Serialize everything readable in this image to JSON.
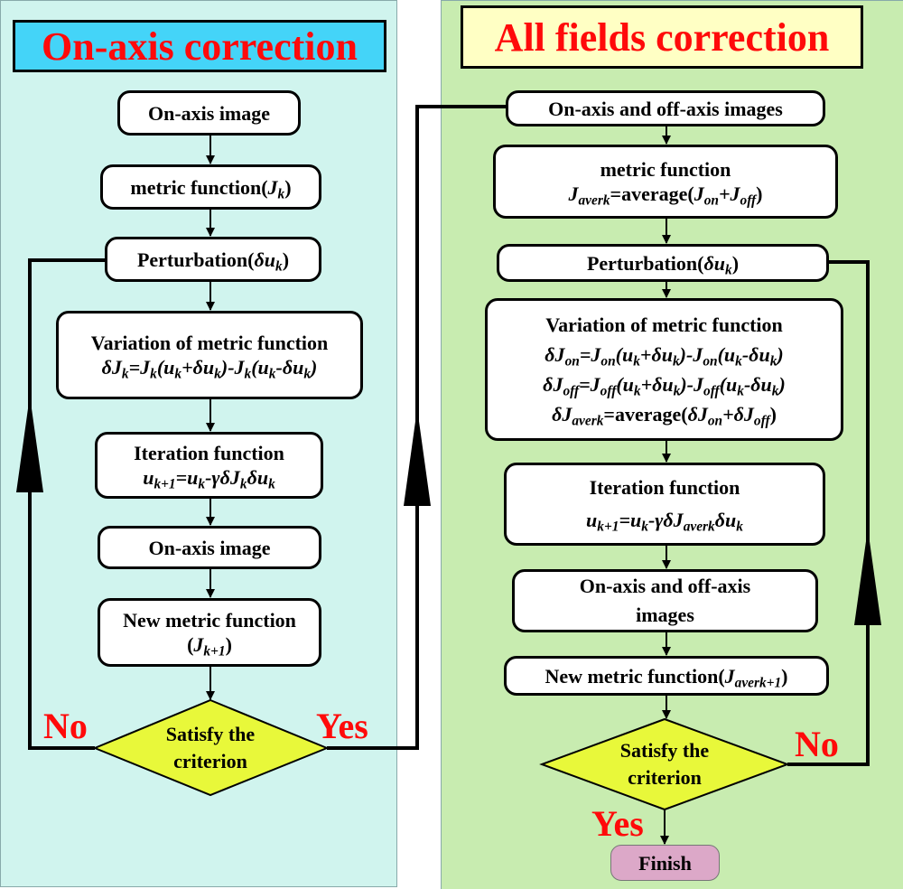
{
  "colors": {
    "left_panel": "#d0f4ee",
    "right_panel": "#c8ecb0",
    "left_title_bg": "#44d4f8",
    "right_title_bg": "#ffffc4",
    "title_text": "#ff0a0a",
    "diamond": "#e8f83a",
    "finish": "#dca8c8"
  },
  "left": {
    "title": "On-axis correction",
    "steps": [
      {
        "lines": [
          "On-axis image"
        ]
      },
      {
        "lines": [
          "metric function(*J_{k}*)"
        ]
      },
      {
        "lines": [
          "Perturbation(*δu_{k}*)"
        ]
      },
      {
        "lines": [
          "Variation of metric function",
          "*δJ_{k}=J_{k}(u_{k}+δu_{k})-J_{k}(u_{k}-δu_{k})*"
        ]
      },
      {
        "lines": [
          "Iteration function",
          "*u_{k+1}=u_{k}-γδJ_{k}δu_{k}*"
        ]
      },
      {
        "lines": [
          "On-axis image"
        ]
      },
      {
        "lines": [
          "New metric function",
          "(*J_{k+1}*)"
        ]
      }
    ],
    "decision": [
      "Satisfy the",
      "criterion"
    ],
    "no_label": "No",
    "yes_label": "Yes"
  },
  "right": {
    "title": "All fields correction",
    "steps": [
      {
        "lines": [
          "On-axis and off-axis images"
        ]
      },
      {
        "lines": [
          "metric function",
          "*J_{averk}*=average(*J_{on}+J_{off}*)"
        ]
      },
      {
        "lines": [
          "Perturbation(*δu_{k}*)"
        ]
      },
      {
        "lines": [
          "Variation of metric function",
          "*δJ_{on}=J_{on}(u_{k}+δu_{k})-J_{on}(u_{k}-δu_{k})*",
          "*δJ_{off}=J_{off}(u_{k}+δu_{k})-J_{off}(u_{k}-δu_{k})*",
          "*δJ_{averk}*=average(*δJ_{on}+δJ_{off}*)"
        ]
      },
      {
        "lines": [
          "Iteration function",
          "*u_{k+1}=u_{k}-γδJ_{averk}δu_{k}*"
        ]
      },
      {
        "lines": [
          "On-axis and off-axis",
          "images"
        ]
      },
      {
        "lines": [
          "New metric function(*J_{averk+1}*)"
        ]
      }
    ],
    "decision": [
      "Satisfy the",
      "criterion"
    ],
    "no_label": "No",
    "yes_label": "Yes",
    "finish": "Finish"
  }
}
